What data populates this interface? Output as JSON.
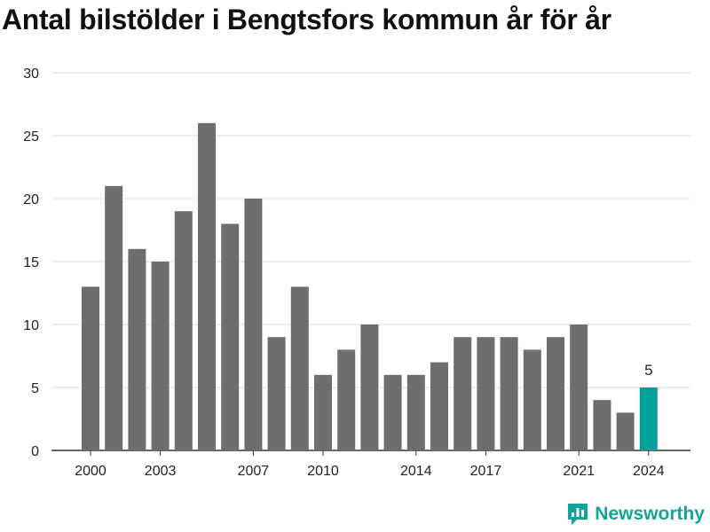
{
  "title": "Antal bilstölder i Bengtsfors kommun år för år",
  "brand": "Newsworthy",
  "colors": {
    "bar": "#6e6d71",
    "highlight": "#00a19a",
    "grid": "#dcdcdc",
    "axis": "#333333"
  },
  "chart_data": {
    "type": "bar",
    "title": "Antal bilstölder i Bengtsfors kommun år för år",
    "xlabel": "",
    "ylabel": "",
    "categories": [
      2000,
      2001,
      2002,
      2003,
      2004,
      2005,
      2006,
      2007,
      2008,
      2009,
      2010,
      2011,
      2012,
      2013,
      2014,
      2015,
      2016,
      2017,
      2018,
      2019,
      2020,
      2021,
      2022,
      2023,
      2024
    ],
    "values": [
      13,
      21,
      16,
      15,
      19,
      26,
      18,
      20,
      9,
      13,
      6,
      8,
      10,
      6,
      6,
      7,
      9,
      9,
      9,
      8,
      9,
      10,
      4,
      3,
      5
    ],
    "x_tick_labels": [
      "2000",
      "2003",
      "2007",
      "2010",
      "2014",
      "2017",
      "2021",
      "2024"
    ],
    "y_ticks": [
      0,
      5,
      10,
      15,
      20,
      25,
      30
    ],
    "ylim": [
      0,
      30
    ],
    "grid": true,
    "highlight": {
      "category": 2024,
      "label": "5"
    }
  }
}
